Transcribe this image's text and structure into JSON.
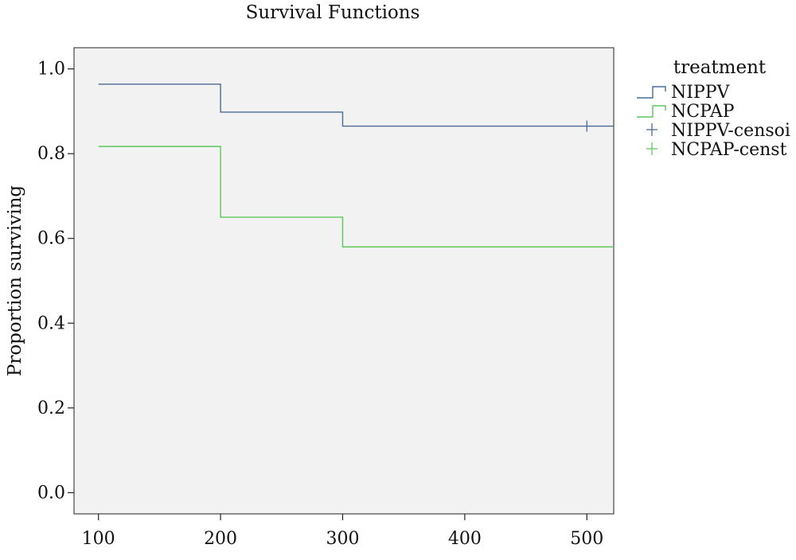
{
  "chart_data": {
    "type": "line",
    "title": "Survival Functions",
    "xlabel": "",
    "ylabel": "Proportion surviving",
    "xlim": [
      80,
      522
    ],
    "ylim": [
      -0.05,
      1.05
    ],
    "xticks": [
      100,
      200,
      300,
      400,
      500
    ],
    "yticks": [
      0.0,
      0.2,
      0.4,
      0.6,
      0.8,
      1.0
    ],
    "xtick_labels": [
      "100",
      "200",
      "300",
      "400",
      "500"
    ],
    "ytick_labels": [
      "0.0",
      "0.2",
      "0.4",
      "0.6",
      "0.8",
      "1.0"
    ],
    "grid": false,
    "legend_position": "right",
    "legend_title": "treatment",
    "series": [
      {
        "name": "NIPPV",
        "color": "#4a6a96",
        "step": true,
        "points": [
          [
            100,
            0.964
          ],
          [
            200,
            0.898
          ],
          [
            300,
            0.865
          ],
          [
            522,
            0.865
          ]
        ]
      },
      {
        "name": "NCPAP",
        "color": "#5cc85c",
        "step": true,
        "points": [
          [
            100,
            0.817
          ],
          [
            200,
            0.65
          ],
          [
            300,
            0.58
          ],
          [
            522,
            0.58
          ]
        ]
      }
    ],
    "censored": [
      {
        "name": "NIPPV-censoi",
        "color": "#4a6a96",
        "points": [
          [
            500,
            0.865
          ]
        ]
      },
      {
        "name": "NCPAP-censt",
        "color": "#5cc85c",
        "points": []
      }
    ]
  }
}
